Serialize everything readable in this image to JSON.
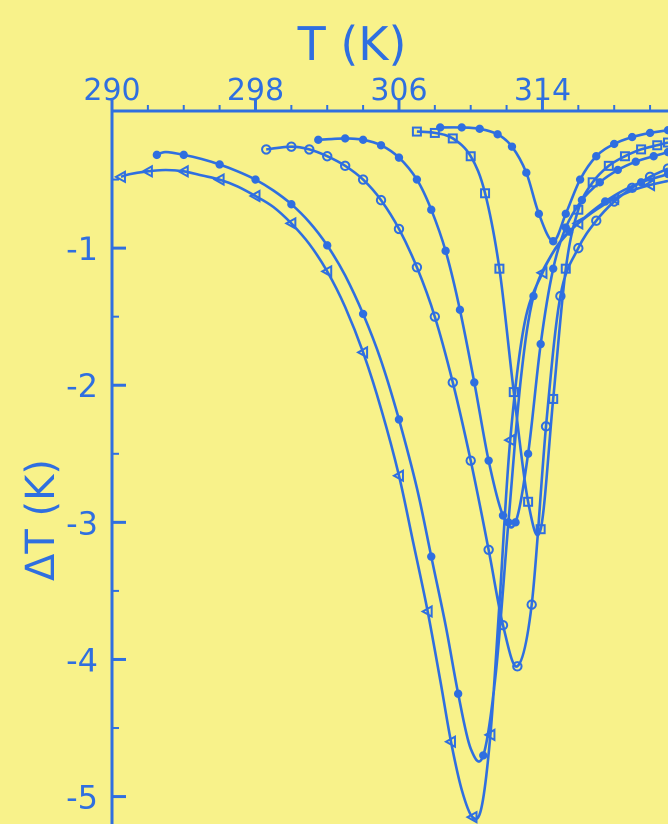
{
  "chart_data": {
    "type": "line",
    "title": "",
    "xlabel": "T (K)",
    "ylabel": "ΔT (K)",
    "xlim": [
      290,
      321
    ],
    "ylim": [
      -5.2,
      0
    ],
    "x_axis_position": "top",
    "x_ticks": [
      290,
      298,
      306,
      314
    ],
    "x_tick_labels": [
      "290",
      "298",
      "306",
      "314"
    ],
    "y_ticks": [
      -1,
      -2,
      -3,
      -4,
      -5
    ],
    "y_tick_labels": [
      "-1",
      "-2",
      "-3",
      "-4",
      "-5"
    ],
    "grid": false,
    "legend": "none",
    "colors": {
      "background": "#f8f28a",
      "ink": "#2f6fe0"
    },
    "series": [
      {
        "marker": "triangle",
        "x": [
          290.5,
          291,
          292,
          293,
          294,
          295,
          296,
          297,
          298,
          299,
          300,
          301,
          302,
          303,
          304,
          305,
          306,
          306.8,
          307.6,
          308.3,
          308.9,
          309.5,
          310.1,
          310.6,
          311.1,
          311.6,
          312.2,
          313,
          314,
          315,
          316,
          317,
          318,
          319,
          320,
          321
        ],
        "y": [
          -0.48,
          -0.46,
          -0.44,
          -0.43,
          -0.44,
          -0.47,
          -0.5,
          -0.55,
          -0.62,
          -0.7,
          -0.82,
          -0.97,
          -1.17,
          -1.43,
          -1.76,
          -2.17,
          -2.66,
          -3.15,
          -3.65,
          -4.15,
          -4.6,
          -4.95,
          -5.15,
          -5.08,
          -4.55,
          -3.6,
          -2.4,
          -1.55,
          -1.18,
          -0.95,
          -0.82,
          -0.72,
          -0.64,
          -0.58,
          -0.54,
          -0.51
        ]
      },
      {
        "marker": "dot",
        "x": [
          292.5,
          293,
          294,
          295,
          296,
          297,
          298,
          299,
          300,
          301,
          302,
          303,
          304,
          305,
          306,
          307,
          307.8,
          308.6,
          309.3,
          310,
          310.7,
          311.4,
          312.1,
          312.8,
          313.5,
          314.5,
          315.5,
          316.5,
          317.5,
          318.5,
          319.5,
          320.5,
          321
        ],
        "y": [
          -0.32,
          -0.3,
          -0.32,
          -0.35,
          -0.39,
          -0.44,
          -0.5,
          -0.58,
          -0.68,
          -0.81,
          -0.98,
          -1.2,
          -1.48,
          -1.82,
          -2.25,
          -2.75,
          -3.25,
          -3.75,
          -4.25,
          -4.65,
          -4.7,
          -4.1,
          -3.0,
          -1.95,
          -1.35,
          -1.05,
          -0.88,
          -0.76,
          -0.66,
          -0.58,
          -0.52,
          -0.48,
          -0.46
        ]
      },
      {
        "marker": "circle",
        "x": [
          298.6,
          300,
          301,
          302,
          303,
          304,
          305,
          306,
          307,
          308,
          309,
          310,
          311,
          311.8,
          312.6,
          313.4,
          314.2,
          315,
          316,
          317,
          318,
          319,
          320,
          321
        ],
        "y": [
          -0.28,
          -0.26,
          -0.28,
          -0.33,
          -0.4,
          -0.5,
          -0.65,
          -0.86,
          -1.14,
          -1.5,
          -1.98,
          -2.55,
          -3.2,
          -3.75,
          -4.05,
          -3.6,
          -2.3,
          -1.35,
          -1.0,
          -0.8,
          -0.66,
          -0.56,
          -0.48,
          -0.42
        ]
      },
      {
        "marker": "dot",
        "x": [
          301.5,
          303,
          304,
          305,
          306,
          307,
          307.8,
          308.6,
          309.4,
          310.2,
          311,
          311.8,
          312.5,
          313.2,
          313.9,
          314.6,
          315.3,
          316.2,
          317.2,
          318.2,
          319.2,
          320.2,
          321
        ],
        "y": [
          -0.21,
          -0.2,
          -0.21,
          -0.25,
          -0.34,
          -0.5,
          -0.72,
          -1.02,
          -1.45,
          -1.98,
          -2.55,
          -2.95,
          -3.0,
          -2.5,
          -1.7,
          -1.15,
          -0.85,
          -0.65,
          -0.52,
          -0.43,
          -0.37,
          -0.33,
          -0.3
        ]
      },
      {
        "marker": "square",
        "x": [
          307,
          308,
          309,
          310,
          310.8,
          311.6,
          312.4,
          313.2,
          313.9,
          314.6,
          315.3,
          316,
          316.8,
          317.7,
          318.6,
          319.5,
          320.4,
          321
        ],
        "y": [
          -0.15,
          -0.16,
          -0.2,
          -0.33,
          -0.6,
          -1.15,
          -2.05,
          -2.85,
          -3.05,
          -2.1,
          -1.15,
          -0.72,
          -0.52,
          -0.4,
          -0.33,
          -0.28,
          -0.25,
          -0.23
        ]
      },
      {
        "marker": "dot",
        "x": [
          308.3,
          309.5,
          310.5,
          311.5,
          312.3,
          313.1,
          313.8,
          314.6,
          315.3,
          316.1,
          317,
          318,
          319,
          320,
          321
        ],
        "y": [
          -0.12,
          -0.12,
          -0.13,
          -0.17,
          -0.26,
          -0.45,
          -0.75,
          -0.95,
          -0.75,
          -0.5,
          -0.33,
          -0.24,
          -0.19,
          -0.16,
          -0.14
        ]
      }
    ]
  }
}
